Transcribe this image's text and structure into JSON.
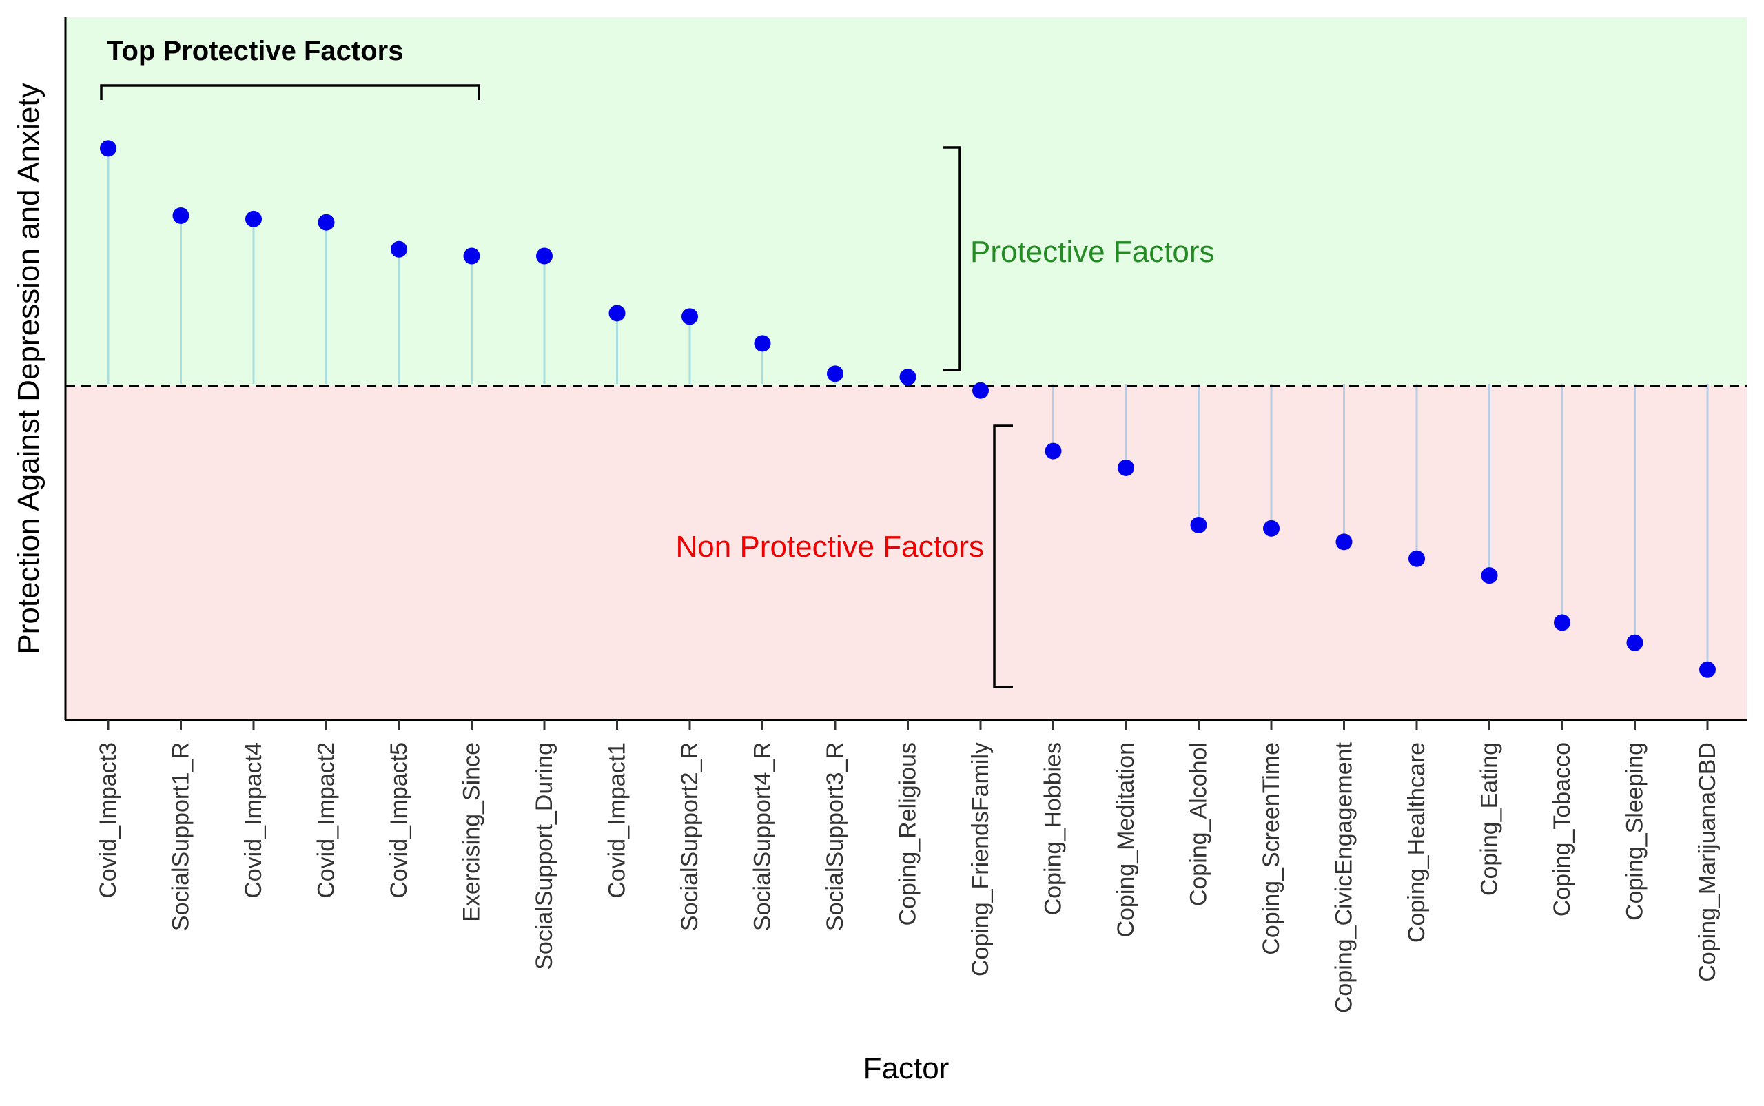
{
  "chart_data": {
    "type": "lollipop",
    "title": "",
    "xlabel": "Factor",
    "ylabel": "Protection Against Depression and Anxiety",
    "baseline": 0,
    "ylim": [
      -1.0,
      1.09
    ],
    "categories": [
      "Covid_Impact3",
      "SocialSupport1_R",
      "Covid_Impact4",
      "Covid_Impact2",
      "Covid_Impact5",
      "Exercising_Since",
      "SocialSupport_During",
      "Covid_Impact1",
      "SocialSupport2_R",
      "SocialSupport4_R",
      "SocialSupport3_R",
      "Coping_Religious",
      "Coping_FriendsFamily",
      "Coping_Hobbies",
      "Coping_Meditation",
      "Coping_Alcohol",
      "Coping_ScreenTime",
      "Coping_CivicEngagement",
      "Coping_Healthcare",
      "Coping_Eating",
      "Coping_Tobacco",
      "Coping_Sleeping",
      "Coping_MarijuanaCBD"
    ],
    "values": [
      0.7,
      0.5,
      0.49,
      0.48,
      0.4,
      0.38,
      0.38,
      0.21,
      0.2,
      0.12,
      0.03,
      0.02,
      -0.02,
      -0.2,
      -0.25,
      -0.42,
      -0.43,
      -0.47,
      -0.52,
      -0.57,
      -0.71,
      -0.77,
      -0.85
    ],
    "grid": false,
    "legend": "none",
    "colors": {
      "point": "#0000ee",
      "stem_positive": "#a8dede",
      "stem_negative": "#b8cce4",
      "band_positive": "#e5fce5",
      "band_negative": "#fde6e6",
      "baseline": "#000000"
    },
    "annotations": {
      "top_label": "Top Protective Factors",
      "protective_label": "Protective Factors",
      "non_protective_label": "Non Protective Factors"
    }
  }
}
